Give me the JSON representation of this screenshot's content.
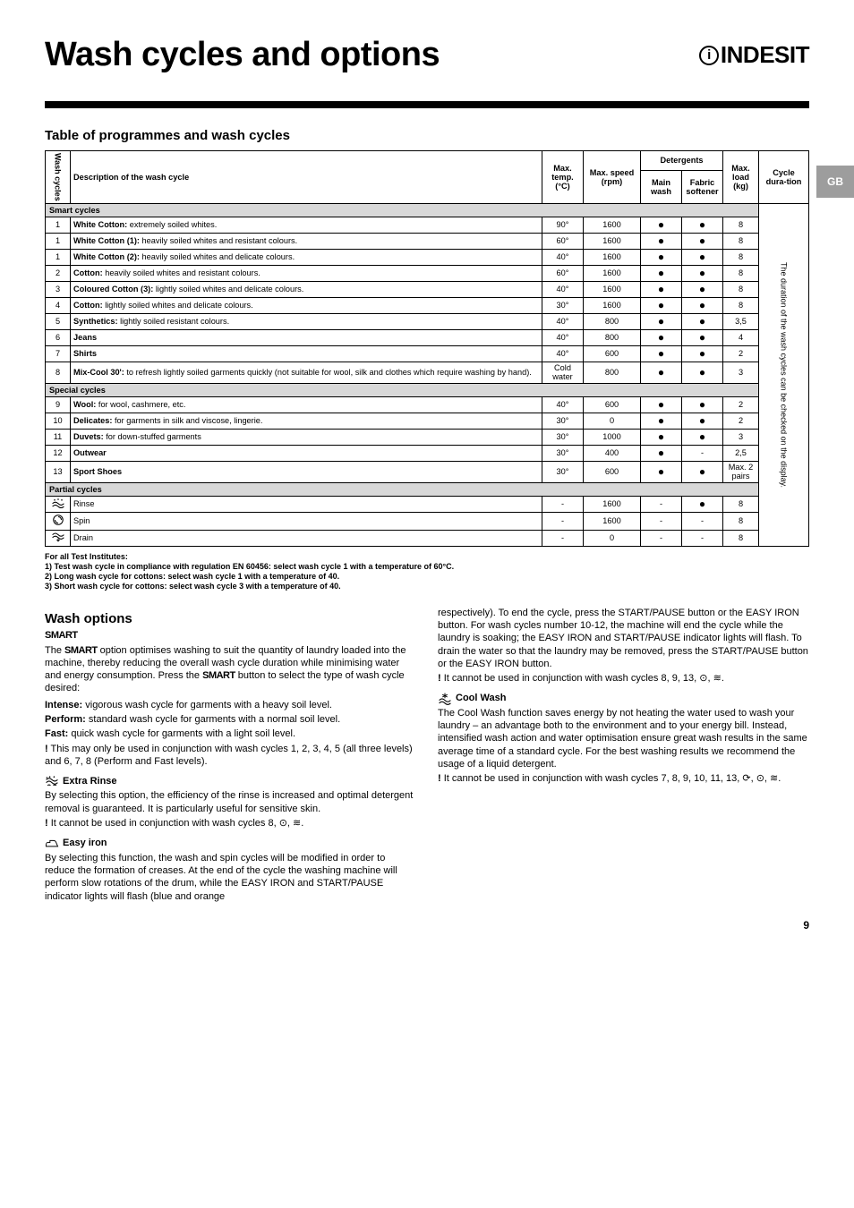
{
  "page_title": "Wash cycles and options",
  "brand": "INDESIT",
  "side_tab": "GB",
  "page_number": "9",
  "table_title": "Table of programmes and wash cycles",
  "headers": {
    "idx": "Wash cycles",
    "desc": "Description of the wash cycle",
    "temp": "Max. temp. (°C)",
    "speed": "Max. speed (rpm)",
    "detergents": "Detergents",
    "main": "Main wash",
    "softener": "Fabric softener",
    "load": "Max. load (kg)",
    "duration": "Cycle dura-tion",
    "rot_text": "The duration of the wash cycles can be checked on the display."
  },
  "sections": [
    {
      "band": "Smart cycles",
      "rows": [
        {
          "idx": "1",
          "desc_b": "White Cotton:",
          "desc": " extremely soiled whites.",
          "temp": "90°",
          "speed": "1600",
          "main": "●",
          "soft": "●",
          "load": "8"
        },
        {
          "idx": "1",
          "desc_b": "White Cotton (1):",
          "desc": " heavily soiled whites and resistant colours.",
          "temp": "60°",
          "speed": "1600",
          "main": "●",
          "soft": "●",
          "load": "8"
        },
        {
          "idx": "1",
          "desc_b": "White Cotton (2):",
          "desc": " heavily soiled whites and delicate colours.",
          "temp": "40°",
          "speed": "1600",
          "main": "●",
          "soft": "●",
          "load": "8"
        },
        {
          "idx": "2",
          "desc_b": "Cotton:",
          "desc": " heavily soiled whites and resistant colours.",
          "temp": "60°",
          "speed": "1600",
          "main": "●",
          "soft": "●",
          "load": "8"
        },
        {
          "idx": "3",
          "desc_b": "Coloured Cotton (3):",
          "desc": " lightly soiled whites and delicate colours.",
          "temp": "40°",
          "speed": "1600",
          "main": "●",
          "soft": "●",
          "load": "8"
        },
        {
          "idx": "4",
          "desc_b": "Cotton:",
          "desc": " lightly soiled whites and delicate colours.",
          "temp": "30°",
          "speed": "1600",
          "main": "●",
          "soft": "●",
          "load": "8"
        },
        {
          "idx": "5",
          "desc_b": "Synthetics:",
          "desc": " lightly soiled resistant colours.",
          "temp": "40°",
          "speed": "800",
          "main": "●",
          "soft": "●",
          "load": "3,5"
        },
        {
          "idx": "6",
          "desc_b": "Jeans",
          "desc": "",
          "temp": "40°",
          "speed": "800",
          "main": "●",
          "soft": "●",
          "load": "4"
        },
        {
          "idx": "7",
          "desc_b": "Shirts",
          "desc": "",
          "temp": "40°",
          "speed": "600",
          "main": "●",
          "soft": "●",
          "load": "2"
        },
        {
          "idx": "8",
          "desc_b": "Mix-Cool 30':",
          "desc": " to refresh lightly soiled garments quickly (not suitable for wool, silk and clothes which require washing by hand).",
          "temp": "Cold water",
          "speed": "800",
          "main": "●",
          "soft": "●",
          "load": "3"
        }
      ]
    },
    {
      "band": "Special cycles",
      "rows": [
        {
          "idx": "9",
          "desc_b": "Wool:",
          "desc": " for wool, cashmere, etc.",
          "temp": "40°",
          "speed": "600",
          "main": "●",
          "soft": "●",
          "load": "2"
        },
        {
          "idx": "10",
          "desc_b": "Delicates:",
          "desc": " for garments in silk and viscose, lingerie.",
          "temp": "30°",
          "speed": "0",
          "main": "●",
          "soft": "●",
          "load": "2"
        },
        {
          "idx": "11",
          "desc_b": "Duvets:",
          "desc": " for down-stuffed garments",
          "temp": "30°",
          "speed": "1000",
          "main": "●",
          "soft": "●",
          "load": "3"
        },
        {
          "idx": "12",
          "desc_b": "Outwear",
          "desc": "",
          "temp": "30°",
          "speed": "400",
          "main": "●",
          "soft": "-",
          "load": "2,5"
        },
        {
          "idx": "13",
          "desc_b": "Sport Shoes",
          "desc": "",
          "temp": "30°",
          "speed": "600",
          "main": "●",
          "soft": "●",
          "load": "Max. 2 pairs"
        }
      ]
    },
    {
      "band": "Partial cycles",
      "rows": [
        {
          "idx": "ICON_RINSE",
          "desc_b": "",
          "desc": "Rinse",
          "temp": "-",
          "speed": "1600",
          "main": "-",
          "soft": "●",
          "load": "8"
        },
        {
          "idx": "ICON_SPIN",
          "desc_b": "",
          "desc": "Spin",
          "temp": "-",
          "speed": "1600",
          "main": "-",
          "soft": "-",
          "load": "8"
        },
        {
          "idx": "ICON_DRAIN",
          "desc_b": "",
          "desc": "Drain",
          "temp": "-",
          "speed": "0",
          "main": "-",
          "soft": "-",
          "load": "8"
        }
      ]
    }
  ],
  "footnotes": [
    "For all Test Institutes:",
    "1) Test wash cycle in compliance with regulation EN 60456: select wash cycle 1 with a temperature of 60°C.",
    "2) Long wash cycle for cottons: select wash cycle 1 with a temperature of 40.",
    "3) Short wash cycle for cottons: select wash cycle 3 with a temperature of 40."
  ],
  "options": {
    "heading": "Wash options",
    "smart_label": "SMART",
    "smart_intro_1": "The ",
    "smart_intro_2": " option optimises washing to suit the quantity of laundry loaded into the machine, thereby reducing the overall wash cycle duration while minimising water and energy consumption. Press the ",
    "smart_intro_3": " button to select the type of wash cycle desired:",
    "intense_b": "Intense:",
    "intense": " vigorous wash cycle for garments with a heavy soil level.",
    "perform_b": "Perform:",
    "perform": " standard wash cycle for garments with a normal soil level.",
    "fast_b": "Fast:",
    "fast": " quick wash cycle for garments with a light soil level.",
    "fast_note": " This may only be used in conjunction with wash cycles 1, 2, 3, 4, 5 (all three levels) and 6, 7, 8 (Perform and Fast levels).",
    "extra_rinse_title": " Extra Rinse",
    "extra_rinse_body": "By selecting this option, the efficiency of the rinse is increased and optimal detergent removal is guaranteed. It is particularly useful for sensitive skin.",
    "extra_rinse_note": " It cannot be used in conjunction with wash cycles 8, ⊙, ≋.",
    "easy_iron_title": " Easy iron",
    "easy_iron_body": "By selecting this function, the wash and spin cycles will be modified in order to reduce the formation of creases. At the end of the cycle the washing machine will perform slow rotations of the drum, while the EASY IRON and START/PAUSE indicator lights will flash (blue and orange respectively). To end the cycle, press the START/PAUSE button or the EASY IRON button. For wash cycles number 10-12, the machine will end the cycle while the laundry is soaking; the EASY IRON and START/PAUSE indicator lights will flash. To drain the water so that the laundry may be removed, press the START/PAUSE button or the EASY IRON button.",
    "easy_iron_note": " It cannot be used in conjunction with wash cycles 8, 9, 13, ⊙, ≋.",
    "cool_wash_title": " Cool Wash",
    "cool_wash_body": "The Cool Wash function saves energy by not heating the water used to wash your laundry – an advantage both to the environment and to your energy bill. Instead, intensified wash action and water optimisation ensure great wash results in the same average time of a standard cycle. For the best washing results we recommend the usage of a liquid detergent.",
    "cool_wash_note": " It cannot be used in conjunction with wash cycles 7, 8, 9, 10, 11, 13, ⟳, ⊙, ≋."
  }
}
